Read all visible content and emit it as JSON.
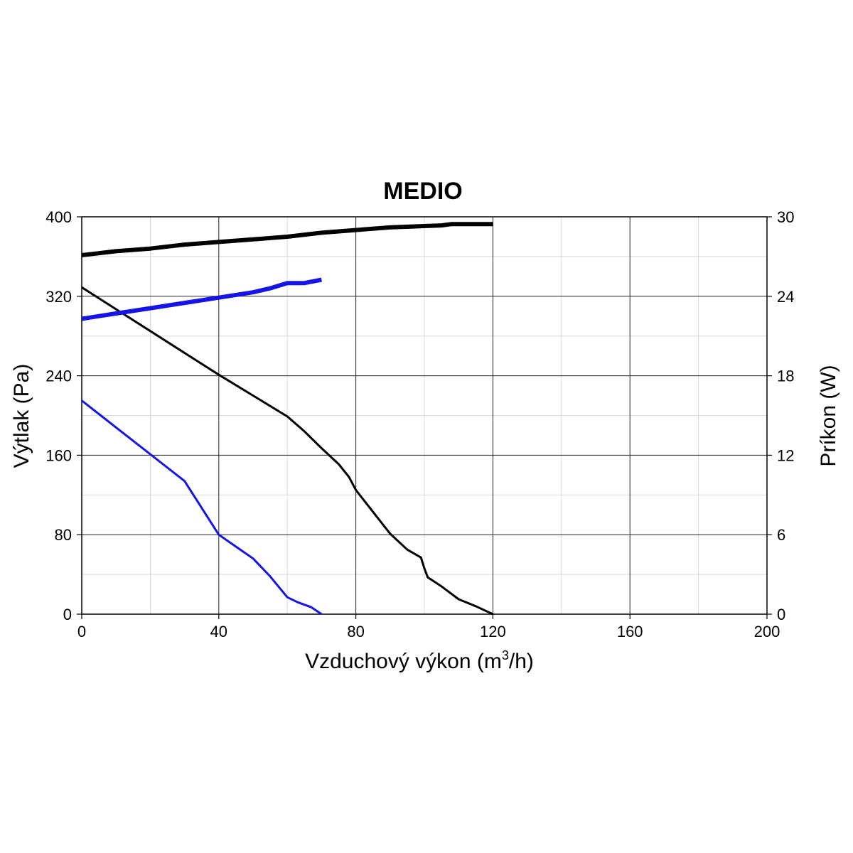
{
  "chart_data": {
    "type": "line",
    "title": "MEDIO",
    "xlabel": "Vzduchový výkon (m",
    "xlabel_sup": "3",
    "xlabel_tail": "/h)",
    "ylabel_left": "Výtlak (Pa)",
    "ylabel_right": "Príkon (W)",
    "xlim": [
      0,
      200
    ],
    "ylim_left": [
      0,
      400
    ],
    "ylim_right": [
      0,
      30
    ],
    "x_ticks": [
      "0",
      "40",
      "80",
      "120",
      "160",
      "200"
    ],
    "y_left_ticks": [
      "0",
      "80",
      "160",
      "240",
      "320",
      "400"
    ],
    "y_right_ticks": [
      "0",
      "6",
      "12",
      "18",
      "24",
      "30"
    ],
    "grid": true,
    "series": [
      {
        "axis": "left",
        "color": "#000000",
        "thick": false,
        "points": [
          [
            0,
            329
          ],
          [
            10,
            307
          ],
          [
            20,
            285
          ],
          [
            30,
            263
          ],
          [
            40,
            241
          ],
          [
            50,
            220
          ],
          [
            60,
            199
          ],
          [
            65,
            184
          ],
          [
            70,
            167
          ],
          [
            75,
            151
          ],
          [
            78,
            138
          ],
          [
            80,
            125
          ],
          [
            85,
            103
          ],
          [
            90,
            81
          ],
          [
            95,
            65
          ],
          [
            99,
            57
          ],
          [
            100,
            46
          ],
          [
            101,
            37
          ],
          [
            105,
            28
          ],
          [
            110,
            15
          ],
          [
            115,
            8
          ],
          [
            120,
            0
          ]
        ]
      },
      {
        "axis": "left",
        "color": "#1414e6",
        "thick": false,
        "points": [
          [
            0,
            215
          ],
          [
            10,
            188
          ],
          [
            20,
            161
          ],
          [
            30,
            134
          ],
          [
            40,
            80
          ],
          [
            45,
            68
          ],
          [
            50,
            56
          ],
          [
            55,
            38
          ],
          [
            60,
            17
          ],
          [
            63,
            12
          ],
          [
            67,
            7
          ],
          [
            70,
            0
          ]
        ]
      },
      {
        "axis": "right",
        "color": "#000000",
        "thick": true,
        "points": [
          [
            0,
            27.1
          ],
          [
            10,
            27.4
          ],
          [
            20,
            27.6
          ],
          [
            30,
            27.9
          ],
          [
            40,
            28.1
          ],
          [
            50,
            28.3
          ],
          [
            60,
            28.5
          ],
          [
            70,
            28.8
          ],
          [
            80,
            29.0
          ],
          [
            90,
            29.2
          ],
          [
            100,
            29.3
          ],
          [
            105,
            29.35
          ],
          [
            108,
            29.45
          ],
          [
            120,
            29.45
          ]
        ]
      },
      {
        "axis": "right",
        "color": "#1414e6",
        "thick": true,
        "points": [
          [
            0,
            22.3
          ],
          [
            10,
            22.7
          ],
          [
            20,
            23.1
          ],
          [
            30,
            23.5
          ],
          [
            40,
            23.9
          ],
          [
            50,
            24.3
          ],
          [
            55,
            24.6
          ],
          [
            60,
            25.0
          ],
          [
            65,
            25.0
          ],
          [
            70,
            25.25
          ]
        ]
      }
    ]
  }
}
